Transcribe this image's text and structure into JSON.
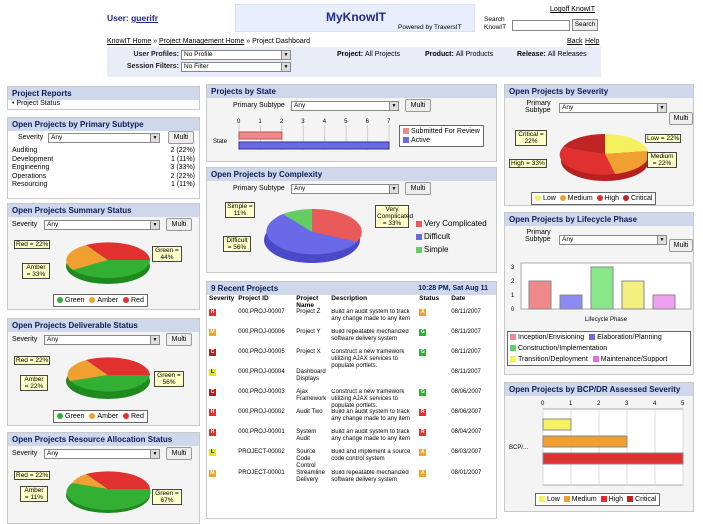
{
  "header": {
    "user_label": "User:",
    "user_name": "guerifr",
    "logo": "MyKnowIT",
    "powered": "Powered by TraversIT",
    "search_label_1": "Search",
    "search_label_2": "KnowIT",
    "search_button": "Search",
    "logoff": "Logoff KnowIT",
    "back": "Back",
    "help": "Help",
    "breadcrumb": [
      "KnowIT Home",
      "»",
      "Project Management Home",
      "»",
      "Project Dashboard"
    ]
  },
  "filters": {
    "user_profiles_label": "User Profiles:",
    "user_profiles_value": "No Profile",
    "session_filters_label": "Session Filters:",
    "session_filters_value": "No Filter",
    "project_label": "Project:",
    "project_value": "All Projects",
    "product_label": "Product:",
    "product_value": "All Products",
    "release_label": "Release:",
    "release_value": "All Releases"
  },
  "project_reports": {
    "title": "Project Reports",
    "item": "• Project Status"
  },
  "by_primary_subtype": {
    "title": "Open Projects by Primary Subtype",
    "severity_label": "Severity",
    "severity_value": "Any",
    "multi": "Multi",
    "rows": [
      {
        "name": "Auditing",
        "count": "2 (22%)"
      },
      {
        "name": "Development",
        "count": "1 (11%)"
      },
      {
        "name": "Engineering",
        "count": "3 (33%)"
      },
      {
        "name": "Operations",
        "count": "2 (22%)"
      },
      {
        "name": "Resourcing",
        "count": "1 (11%)"
      }
    ]
  },
  "summary_status": {
    "title": "Open Projects Summary Status",
    "severity_label": "Severity",
    "severity_value": "Any",
    "multi": "Multi",
    "callouts": [
      "Red = 22%",
      "Green = 44%",
      "Amber = 33%"
    ],
    "legend": [
      "Green",
      "Amber",
      "Red"
    ],
    "values": [
      44,
      33,
      22
    ]
  },
  "deliverable_status": {
    "title": "Open Projects Deliverable Status",
    "severity_label": "Severity",
    "severity_value": "Any",
    "multi": "Multi",
    "callouts": [
      "Red = 22%",
      "Amber = 22%",
      "Green = 56%"
    ],
    "legend": [
      "Green",
      "Amber",
      "Red"
    ],
    "values": [
      56,
      22,
      22
    ]
  },
  "resource_status": {
    "title": "Open Projects Resource Allocation Status",
    "severity_label": "Severity",
    "severity_value": "Any",
    "multi": "Multi",
    "callouts": [
      "Red = 22%",
      "Amber = 11%",
      "Green = 67%"
    ],
    "values": [
      67,
      11,
      22
    ]
  },
  "by_state": {
    "title": "Projects by State",
    "subtype_label": "Primary Subtype",
    "subtype_value": "Any",
    "multi": "Multi",
    "ticks": [
      "0",
      "1",
      "2",
      "3",
      "4",
      "5",
      "6",
      "7"
    ],
    "axis_label": "State",
    "legend": [
      "Submitted For Review",
      "Active"
    ],
    "values": {
      "Submitted For Review": 2,
      "Active": 7
    }
  },
  "by_complexity": {
    "title": "Open Projects by Complexity",
    "subtype_label": "Primary Subtype",
    "subtype_value": "Any",
    "multi": "Multi",
    "callouts": [
      "Simple = 11%",
      "Difficult = 56%",
      "Very Complicated = 33%"
    ],
    "legend": [
      "Very Complicated",
      "Difficult",
      "Simple"
    ],
    "values": [
      33,
      56,
      11
    ]
  },
  "recent": {
    "title": "9 Recent Projects",
    "timestamp": "10:28 PM, Sat Aug 11",
    "headers": [
      "Severity",
      "Project ID",
      "Project Name",
      "Description",
      "Status",
      "Date"
    ],
    "rows": [
      {
        "sev": "H",
        "id": "000.PROJ-00007",
        "name": "Project Z",
        "desc": "Build an audit system to track any change made to any item",
        "status": "A",
        "date": "08/11/2007"
      },
      {
        "sev": "M",
        "id": "000.PROJ-00006",
        "name": "Project Y",
        "desc": "Build repeatable mechanized software delivery system",
        "status": "G",
        "date": "08/11/2007"
      },
      {
        "sev": "C",
        "id": "000.PROJ-00005",
        "name": "Project X",
        "desc": "Construct a new framework utilizing AJAX services to populate portlets.",
        "status": "G",
        "date": "08/11/2007"
      },
      {
        "sev": "L",
        "id": "000.PROJ-00004",
        "name": "Dashboard Displays",
        "desc": "",
        "status": "",
        "date": "08/11/2007"
      },
      {
        "sev": "C",
        "id": "000.PROJ-00003",
        "name": "Ajax Framework",
        "desc": "Construct a new framework utilizing AJAX services to populate portlets.",
        "status": "G",
        "date": "08/06/2007"
      },
      {
        "sev": "H",
        "id": "000.PROJ-00002",
        "name": "Audit Two",
        "desc": "Build an audit system to track any change made to any item",
        "status": "R",
        "date": "08/06/2007"
      },
      {
        "sev": "H",
        "id": "000.PROJ-00001",
        "name": "System Audit",
        "desc": "Build an audit system to track any change made to any item",
        "status": "R",
        "date": "08/04/2007"
      },
      {
        "sev": "L",
        "id": "PROJECT-00002",
        "name": "Source Code Control",
        "desc": "Build and implement a source code control system",
        "status": "A",
        "date": "08/03/2007"
      },
      {
        "sev": "M",
        "id": "PROJECT-00001",
        "name": "Streamline Delivery",
        "desc": "Build repeatable mechanized software delivery system",
        "status": "A",
        "date": "08/01/2007"
      }
    ]
  },
  "by_severity": {
    "title": "Open Projects by Severity",
    "subtype_label_1": "Primary",
    "subtype_label_2": "Subtype",
    "subtype_value": "Any",
    "multi": "Multi",
    "callouts": [
      "Critical = 22%",
      "Low = 22%",
      "High = 33%",
      "Medium = 22%"
    ],
    "legend": [
      "Low",
      "Medium",
      "High",
      "Critical"
    ],
    "values": {
      "Low": 22,
      "Medium": 22,
      "High": 33,
      "Critical": 22
    }
  },
  "lifecycle": {
    "title": "Open Projects by Lifecycle Phase",
    "subtype_label_1": "Primary",
    "subtype_label_2": "Subtype",
    "subtype_value": "Any",
    "multi": "Multi",
    "ticks": [
      "3",
      "2",
      "1",
      "0"
    ],
    "axis_label": "Lifecycle Phase",
    "legend": [
      "Inception/Envisioning",
      "Elaboration/Planning",
      "Construction/Implementation",
      "Transition/Deployment",
      "Maintenance/Support"
    ],
    "values": [
      2,
      1,
      3,
      2,
      1
    ]
  },
  "bcp": {
    "title": "Open Projects by BCP/DR Assessed Severity",
    "ticks": [
      "0",
      "1",
      "2",
      "3",
      "4",
      "5"
    ],
    "axis_label": "BCP/...",
    "legend": [
      "Low",
      "Medium",
      "High",
      "Critical"
    ],
    "values": {
      "Low": 1,
      "Medium": 3,
      "High": 5,
      "Critical": 0
    }
  },
  "colors": {
    "green": "#33b033",
    "amber": "#f0a030",
    "red": "#e03030",
    "yellow": "#f4f060",
    "blue": "#6a6ae8",
    "pink": "#f08a8a",
    "panel_title": "#cfd8ea"
  }
}
